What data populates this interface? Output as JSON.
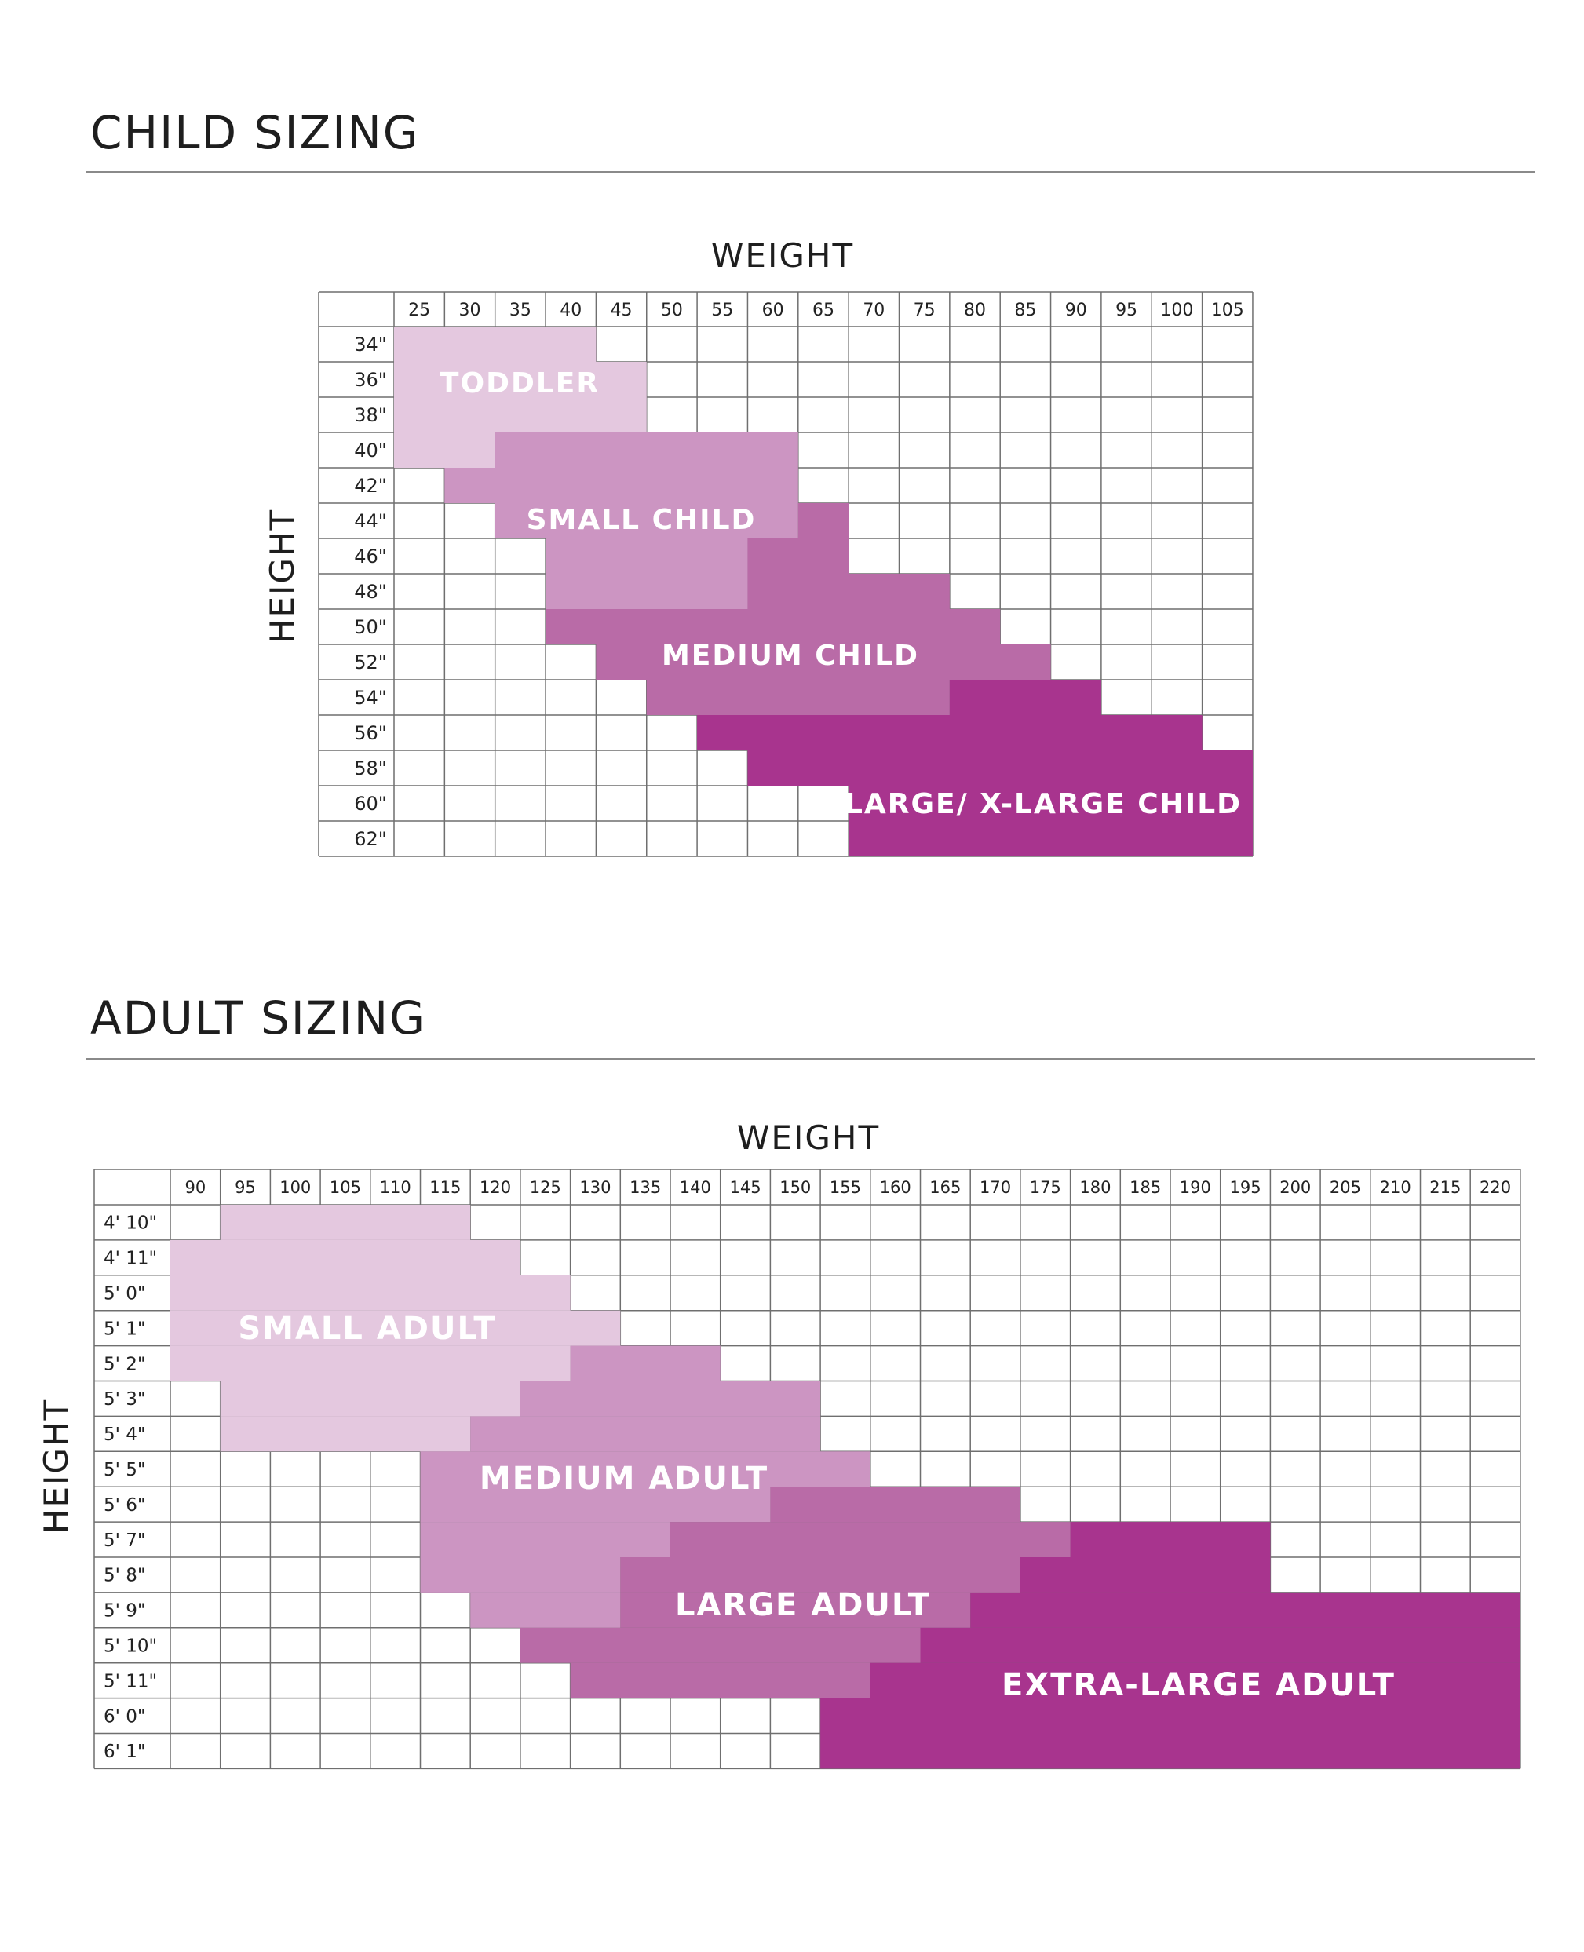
{
  "child_section": {
    "title": "CHILD SIZING"
  },
  "adult_section": {
    "title": "ADULT SIZING"
  },
  "colors": {
    "grid": "#6f6f6f",
    "zone1": "#e4c8df",
    "zone2": "#cc95c2",
    "zone3": "#b96ba7",
    "zone4": "#a8348e"
  },
  "chart_data": [
    {
      "type": "heatmap",
      "title": "CHILD SIZING",
      "xlabel": "WEIGHT",
      "ylabel": "HEIGHT",
      "x": [
        "25",
        "30",
        "35",
        "40",
        "45",
        "50",
        "55",
        "60",
        "65",
        "70",
        "75",
        "80",
        "85",
        "90",
        "95",
        "100",
        "105"
      ],
      "y": [
        "34\"",
        "36\"",
        "38\"",
        "40\"",
        "42\"",
        "44\"",
        "46\"",
        "48\"",
        "50\"",
        "52\"",
        "54\"",
        "56\"",
        "58\"",
        "60\"",
        "62\""
      ],
      "zones": [
        {
          "name": "TODDLER",
          "color": "#e4c8df",
          "rows": [
            [
              "34\"",
              "25",
              "40"
            ],
            [
              "36\"",
              "25",
              "45"
            ],
            [
              "38\"",
              "25",
              "45"
            ],
            [
              "40\"",
              "25",
              "30"
            ]
          ]
        },
        {
          "name": "SMALL CHILD",
          "color": "#cc95c2",
          "rows": [
            [
              "40\"",
              "35",
              "60"
            ],
            [
              "42\"",
              "30",
              "60"
            ],
            [
              "44\"",
              "35",
              "60"
            ],
            [
              "46\"",
              "40",
              "55"
            ],
            [
              "48\"",
              "40",
              "55"
            ]
          ]
        },
        {
          "name": "MEDIUM CHILD",
          "color": "#b96ba7",
          "rows": [
            [
              "44\"",
              "65",
              "65"
            ],
            [
              "46\"",
              "60",
              "65"
            ],
            [
              "48\"",
              "60",
              "75"
            ],
            [
              "50\"",
              "40",
              "80"
            ],
            [
              "52\"",
              "45",
              "85"
            ],
            [
              "54\"",
              "50",
              "75"
            ]
          ]
        },
        {
          "name": "LARGE/ X-LARGE CHILD",
          "color": "#a8348e",
          "rows": [
            [
              "54\"",
              "80",
              "90"
            ],
            [
              "56\"",
              "55",
              "100"
            ],
            [
              "58\"",
              "60",
              "105"
            ],
            [
              "60\"",
              "70",
              "105"
            ],
            [
              "62\"",
              "70",
              "105"
            ]
          ]
        }
      ]
    },
    {
      "type": "heatmap",
      "title": "ADULT SIZING",
      "xlabel": "WEIGHT",
      "ylabel": "HEIGHT",
      "x": [
        "90",
        "95",
        "100",
        "105",
        "110",
        "115",
        "120",
        "125",
        "130",
        "135",
        "140",
        "145",
        "150",
        "155",
        "160",
        "165",
        "170",
        "175",
        "180",
        "185",
        "190",
        "195",
        "200",
        "205",
        "210",
        "215",
        "220"
      ],
      "y": [
        "4' 10\"",
        "4' 11\"",
        "5' 0\"",
        "5' 1\"",
        "5' 2\"",
        "5' 3\"",
        "5' 4\"",
        "5' 5\"",
        "5' 6\"",
        "5' 7\"",
        "5' 8\"",
        "5' 9\"",
        "5' 10\"",
        "5' 11\"",
        "6' 0\"",
        "6' 1\""
      ],
      "zones": [
        {
          "name": "SMALL ADULT",
          "color": "#e4c8df",
          "rows": [
            [
              "4' 10\"",
              "95",
              "115"
            ],
            [
              "4' 11\"",
              "90",
              "120"
            ],
            [
              "5' 0\"",
              "90",
              "125"
            ],
            [
              "5' 1\"",
              "90",
              "130"
            ],
            [
              "5' 2\"",
              "90",
              "125"
            ],
            [
              "5' 3\"",
              "95",
              "120"
            ],
            [
              "5' 4\"",
              "95",
              "115"
            ]
          ]
        },
        {
          "name": "MEDIUM ADULT",
          "color": "#cc95c2",
          "rows": [
            [
              "5' 2\"",
              "130",
              "140"
            ],
            [
              "5' 3\"",
              "125",
              "150"
            ],
            [
              "5' 4\"",
              "120",
              "150"
            ],
            [
              "5' 5\"",
              "115",
              "155"
            ],
            [
              "5' 6\"",
              "115",
              "145"
            ],
            [
              "5' 7\"",
              "115",
              "135"
            ],
            [
              "5' 8\"",
              "115",
              "130"
            ],
            [
              "5' 9\"",
              "120",
              "130"
            ]
          ]
        },
        {
          "name": "LARGE ADULT",
          "color": "#b96ba7",
          "rows": [
            [
              "5' 6\"",
              "150",
              "170"
            ],
            [
              "5' 7\"",
              "140",
              "175"
            ],
            [
              "5' 8\"",
              "135",
              "170"
            ],
            [
              "5' 9\"",
              "135",
              "165"
            ],
            [
              "5' 10\"",
              "125",
              "160"
            ],
            [
              "5' 11\"",
              "130",
              "155"
            ]
          ]
        },
        {
          "name": "EXTRA-LARGE ADULT",
          "color": "#a8348e",
          "rows": [
            [
              "5' 7\"",
              "180",
              "195"
            ],
            [
              "5' 8\"",
              "175",
              "195"
            ],
            [
              "5' 9\"",
              "170",
              "220"
            ],
            [
              "5' 10\"",
              "165",
              "220"
            ],
            [
              "5' 11\"",
              "160",
              "220"
            ],
            [
              "6' 0\"",
              "155",
              "220"
            ],
            [
              "6' 1\"",
              "155",
              "220"
            ]
          ]
        }
      ]
    }
  ]
}
